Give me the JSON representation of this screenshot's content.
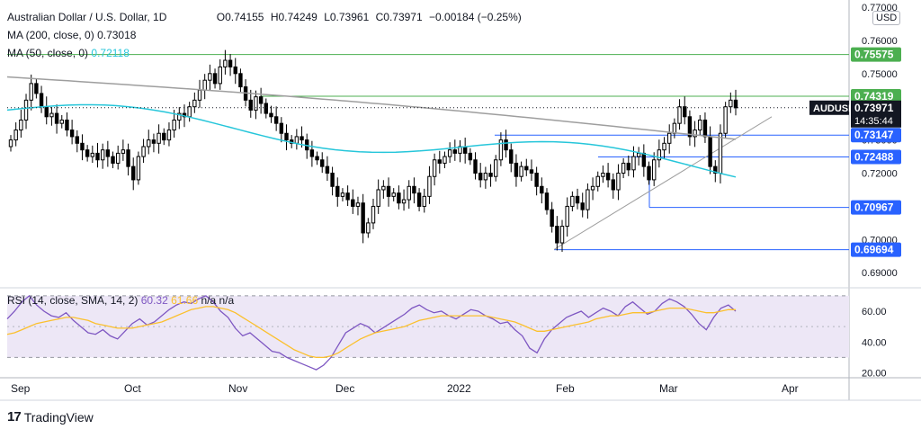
{
  "header": {
    "symbol_title": "Australian Dollar / U.S. Dollar, 1D",
    "open": "O0.74155",
    "high": "H0.74249",
    "low": "L0.73961",
    "close": "C0.73971",
    "change": "−0.00184 (−0.25%)",
    "ma200_label": "MA (200, close, 0)",
    "ma200_value": "0.73018",
    "ma50_label": "MA (50, close, 0)",
    "ma50_value": "0.72118",
    "rsi_label": "RSI (14, close, SMA, 14, 2)",
    "rsi_value": "60.32",
    "rsi_sma_value": "61.66",
    "rsi_na": "n/a n/a"
  },
  "currency_badge": "USD",
  "symbol_badge": "AUDUSD",
  "countdown": "14:35:44",
  "logo_text": "TradingView",
  "colors": {
    "up": "#ffffff",
    "down": "#000000",
    "wick": "#000000",
    "ma200": "#9e9e9e",
    "ma50": "#26c6da",
    "green_level": "#4caf50",
    "blue_level": "#2962ff",
    "rsi": "#7e57c2",
    "rsi_sma": "#fbc02d",
    "rsi_band": "#ede7f6"
  },
  "chart_data": [
    {
      "type": "candlestick",
      "title": "Australian Dollar / U.S. Dollar, 1D",
      "y_ticks": [
        "0.77000",
        "0.76000",
        "0.75000",
        "0.74000",
        "0.73000",
        "0.72000",
        "0.71000",
        "0.70000",
        "0.69000"
      ],
      "ylim": [
        0.686,
        0.77
      ],
      "x_ticks": [
        "Sep",
        "Oct",
        "Nov",
        "Dec",
        "2022",
        "Feb",
        "Mar",
        "Apr"
      ],
      "ohlc_closes": [
        0.73,
        0.733,
        0.736,
        0.742,
        0.747,
        0.744,
        0.74,
        0.737,
        0.738,
        0.735,
        0.736,
        0.733,
        0.731,
        0.729,
        0.727,
        0.725,
        0.726,
        0.724,
        0.727,
        0.725,
        0.723,
        0.726,
        0.727,
        0.722,
        0.718,
        0.725,
        0.728,
        0.73,
        0.729,
        0.732,
        0.73,
        0.733,
        0.736,
        0.738,
        0.737,
        0.74,
        0.742,
        0.745,
        0.748,
        0.75,
        0.747,
        0.752,
        0.754,
        0.752,
        0.75,
        0.746,
        0.742,
        0.739,
        0.743,
        0.741,
        0.738,
        0.737,
        0.735,
        0.732,
        0.73,
        0.729,
        0.731,
        0.73,
        0.727,
        0.725,
        0.724,
        0.722,
        0.72,
        0.716,
        0.713,
        0.714,
        0.712,
        0.71,
        0.711,
        0.702,
        0.705,
        0.71,
        0.715,
        0.716,
        0.713,
        0.714,
        0.711,
        0.712,
        0.716,
        0.714,
        0.71,
        0.713,
        0.719,
        0.724,
        0.723,
        0.725,
        0.727,
        0.726,
        0.728,
        0.726,
        0.724,
        0.72,
        0.718,
        0.72,
        0.719,
        0.724,
        0.73,
        0.727,
        0.723,
        0.719,
        0.722,
        0.721,
        0.72,
        0.716,
        0.714,
        0.709,
        0.704,
        0.699,
        0.704,
        0.71,
        0.713,
        0.711,
        0.709,
        0.715,
        0.716,
        0.719,
        0.72,
        0.718,
        0.715,
        0.72,
        0.723,
        0.721,
        0.725,
        0.726,
        0.722,
        0.718,
        0.724,
        0.727,
        0.729,
        0.732,
        0.735,
        0.74,
        0.737,
        0.731,
        0.733,
        0.736,
        0.731,
        0.722,
        0.72,
        0.732,
        0.74,
        0.742,
        0.7397
      ],
      "series": [
        {
          "name": "MA (200, close, 0)",
          "start": 0.749,
          "end": 0.7302
        },
        {
          "name": "MA (50, close, 0)",
          "start": 0.739,
          "end": 0.7212
        }
      ],
      "horizontal_levels": [
        {
          "value": 0.75575,
          "label": "0.75575",
          "color": "green"
        },
        {
          "value": 0.74319,
          "label": "0.74319",
          "color": "green"
        },
        {
          "value": 0.73147,
          "label": "0.73147",
          "color": "blue"
        },
        {
          "value": 0.72488,
          "label": "0.72488",
          "color": "blue"
        },
        {
          "value": 0.70967,
          "label": "0.70967",
          "color": "blue"
        },
        {
          "value": 0.69694,
          "label": "0.69694",
          "color": "blue"
        }
      ],
      "trendline": {
        "from": 0.697,
        "to": 0.737
      },
      "last_price": "0.73971"
    },
    {
      "type": "line",
      "title": "RSI (14, close, SMA, 14, 2)",
      "y_ticks": [
        "60.00",
        "40.00",
        "20.00"
      ],
      "ylim": [
        18,
        74
      ],
      "bands": [
        30,
        70
      ],
      "series": [
        {
          "name": "RSI",
          "values": [
            55,
            60,
            66,
            70,
            64,
            60,
            57,
            56,
            59,
            54,
            50,
            46,
            45,
            48,
            44,
            42,
            47,
            52,
            55,
            51,
            53,
            57,
            61,
            64,
            66,
            65,
            68,
            70,
            66,
            60,
            56,
            49,
            44,
            46,
            42,
            38,
            34,
            33,
            30,
            28,
            26,
            24,
            22,
            25,
            30,
            38,
            46,
            49,
            52,
            50,
            46,
            49,
            52,
            55,
            58,
            62,
            64,
            61,
            59,
            60,
            57,
            55,
            58,
            61,
            60,
            57,
            55,
            52,
            53,
            48,
            44,
            36,
            33,
            42,
            48,
            52,
            56,
            58,
            60,
            56,
            59,
            62,
            60,
            57,
            63,
            66,
            62,
            58,
            60,
            65,
            68,
            66,
            63,
            58,
            52,
            48,
            56,
            62,
            64,
            60
          ]
        },
        {
          "name": "RSI SMA",
          "values": [
            45,
            46,
            48,
            50,
            52,
            53,
            54,
            55,
            56,
            56,
            55,
            54,
            52,
            51,
            50,
            49,
            49,
            49,
            50,
            51,
            52,
            53,
            55,
            57,
            59,
            61,
            62,
            63,
            63,
            62,
            61,
            59,
            56,
            53,
            50,
            47,
            44,
            41,
            38,
            35,
            33,
            31,
            30,
            30,
            31,
            33,
            36,
            39,
            42,
            44,
            46,
            47,
            48,
            49,
            50,
            52,
            54,
            55,
            56,
            57,
            57,
            57,
            57,
            57,
            57,
            57,
            56,
            55,
            54,
            53,
            51,
            49,
            47,
            47,
            48,
            49,
            50,
            51,
            52,
            53,
            55,
            56,
            57,
            57,
            58,
            59,
            59,
            59,
            60,
            61,
            62,
            62,
            62,
            61,
            60,
            59,
            59,
            60,
            61,
            61
          ]
        }
      ],
      "last_value": "60.32"
    }
  ]
}
